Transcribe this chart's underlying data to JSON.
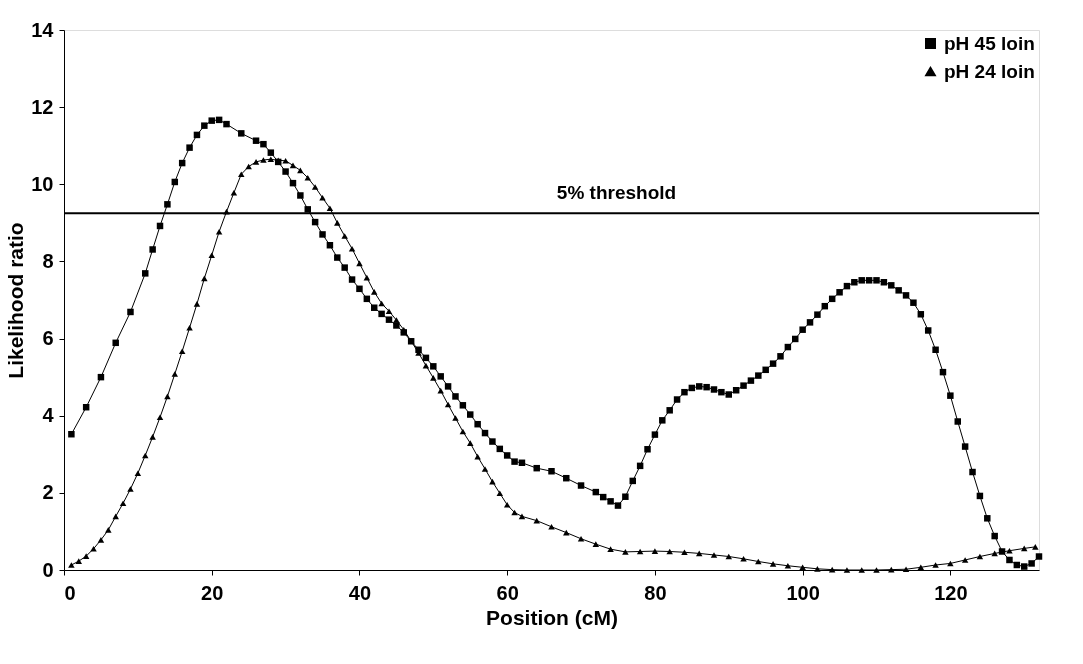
{
  "chart_data": {
    "type": "line",
    "xlabel": "Position (cM)",
    "ylabel": "Likelihood ratio",
    "xlim": [
      0,
      132
    ],
    "xticks": [
      0,
      20,
      40,
      60,
      80,
      100,
      120
    ],
    "ylim": [
      0,
      14
    ],
    "yticks": [
      0,
      2,
      4,
      6,
      8,
      10,
      12,
      14
    ],
    "grid": false,
    "legend": "top right",
    "ref_lines": [
      {
        "axis": "y",
        "value": 9.25,
        "label": "5% threshold",
        "color": "#000000"
      }
    ],
    "series": [
      {
        "name": "pH 45 loin",
        "color": "#000000",
        "marker": "square",
        "x": [
          1,
          3,
          5,
          7,
          9,
          11,
          12,
          13,
          14,
          15,
          16,
          17,
          18,
          19,
          20,
          21,
          22,
          24,
          26,
          27,
          28,
          29,
          30,
          31,
          32,
          33,
          34,
          35,
          36,
          37,
          38,
          39,
          40,
          41,
          42,
          43,
          44,
          45,
          46,
          47,
          48,
          49,
          50,
          51,
          52,
          53,
          54,
          55,
          56,
          57,
          58,
          59,
          60,
          61,
          62,
          64,
          66,
          68,
          70,
          72,
          73,
          74,
          75,
          76,
          77,
          78,
          79,
          80,
          81,
          82,
          83,
          84,
          85,
          86,
          87,
          88,
          89,
          90,
          91,
          92,
          93,
          94,
          95,
          96,
          97,
          98,
          99,
          100,
          101,
          102,
          103,
          104,
          105,
          106,
          107,
          108,
          109,
          110,
          111,
          112,
          113,
          114,
          115,
          116,
          117,
          118,
          119,
          120,
          121,
          122,
          123,
          124,
          125,
          126,
          127,
          128,
          129,
          130,
          131,
          132
        ],
        "values": [
          3.52,
          4.22,
          5.0,
          5.89,
          6.69,
          7.69,
          8.31,
          8.92,
          9.48,
          10.06,
          10.55,
          10.95,
          11.28,
          11.52,
          11.65,
          11.67,
          11.56,
          11.32,
          11.13,
          11.04,
          10.82,
          10.58,
          10.33,
          10.03,
          9.71,
          9.35,
          9.02,
          8.7,
          8.42,
          8.1,
          7.84,
          7.53,
          7.29,
          7.03,
          6.8,
          6.64,
          6.49,
          6.34,
          6.16,
          5.93,
          5.71,
          5.5,
          5.28,
          5.02,
          4.76,
          4.5,
          4.27,
          4.03,
          3.78,
          3.55,
          3.33,
          3.14,
          2.97,
          2.81,
          2.78,
          2.64,
          2.56,
          2.38,
          2.19,
          2.02,
          1.89,
          1.78,
          1.67,
          1.9,
          2.31,
          2.7,
          3.13,
          3.51,
          3.88,
          4.14,
          4.42,
          4.61,
          4.72,
          4.76,
          4.74,
          4.68,
          4.61,
          4.55,
          4.66,
          4.78,
          4.91,
          5.04,
          5.19,
          5.35,
          5.54,
          5.78,
          5.99,
          6.23,
          6.42,
          6.62,
          6.84,
          7.03,
          7.2,
          7.36,
          7.46,
          7.51,
          7.51,
          7.51,
          7.46,
          7.38,
          7.25,
          7.12,
          6.93,
          6.63,
          6.21,
          5.71,
          5.13,
          4.52,
          3.85,
          3.2,
          2.54,
          1.92,
          1.34,
          0.88,
          0.48,
          0.26,
          0.13,
          0.09,
          0.17,
          0.35
        ]
      },
      {
        "name": "pH 24 loin",
        "color": "#000000",
        "marker": "triangle",
        "x": [
          1,
          2,
          3,
          4,
          5,
          6,
          7,
          8,
          9,
          10,
          11,
          12,
          13,
          14,
          15,
          16,
          17,
          18,
          19,
          20,
          21,
          22,
          23,
          24,
          25,
          26,
          27,
          28,
          29,
          30,
          31,
          32,
          33,
          34,
          35,
          36,
          37,
          38,
          39,
          40,
          41,
          42,
          43,
          44,
          45,
          46,
          47,
          48,
          49,
          50,
          51,
          52,
          53,
          54,
          55,
          56,
          57,
          58,
          59,
          60,
          61,
          62,
          64,
          66,
          68,
          70,
          72,
          74,
          76,
          78,
          80,
          82,
          84,
          86,
          88,
          90,
          92,
          94,
          96,
          98,
          100,
          102,
          104,
          106,
          108,
          110,
          112,
          114,
          116,
          118,
          120,
          122,
          124,
          126,
          128,
          130,
          131.5
        ],
        "values": [
          0.13,
          0.23,
          0.36,
          0.55,
          0.78,
          1.04,
          1.39,
          1.73,
          2.1,
          2.51,
          2.97,
          3.45,
          3.96,
          4.5,
          5.08,
          5.67,
          6.28,
          6.9,
          7.56,
          8.16,
          8.77,
          9.29,
          9.78,
          10.26,
          10.46,
          10.58,
          10.63,
          10.65,
          10.62,
          10.61,
          10.49,
          10.36,
          10.17,
          9.93,
          9.65,
          9.38,
          9.0,
          8.66,
          8.33,
          7.95,
          7.58,
          7.21,
          6.91,
          6.71,
          6.48,
          6.23,
          5.93,
          5.63,
          5.3,
          4.98,
          4.65,
          4.29,
          3.94,
          3.59,
          3.29,
          2.94,
          2.62,
          2.29,
          1.99,
          1.69,
          1.49,
          1.39,
          1.28,
          1.12,
          0.97,
          0.81,
          0.67,
          0.54,
          0.47,
          0.48,
          0.49,
          0.48,
          0.46,
          0.43,
          0.39,
          0.35,
          0.29,
          0.22,
          0.16,
          0.11,
          0.07,
          0.03,
          0.01,
          0.0,
          0.0,
          0.0,
          0.01,
          0.02,
          0.07,
          0.13,
          0.17,
          0.26,
          0.35,
          0.43,
          0.5,
          0.56,
          0.6
        ]
      }
    ]
  }
}
